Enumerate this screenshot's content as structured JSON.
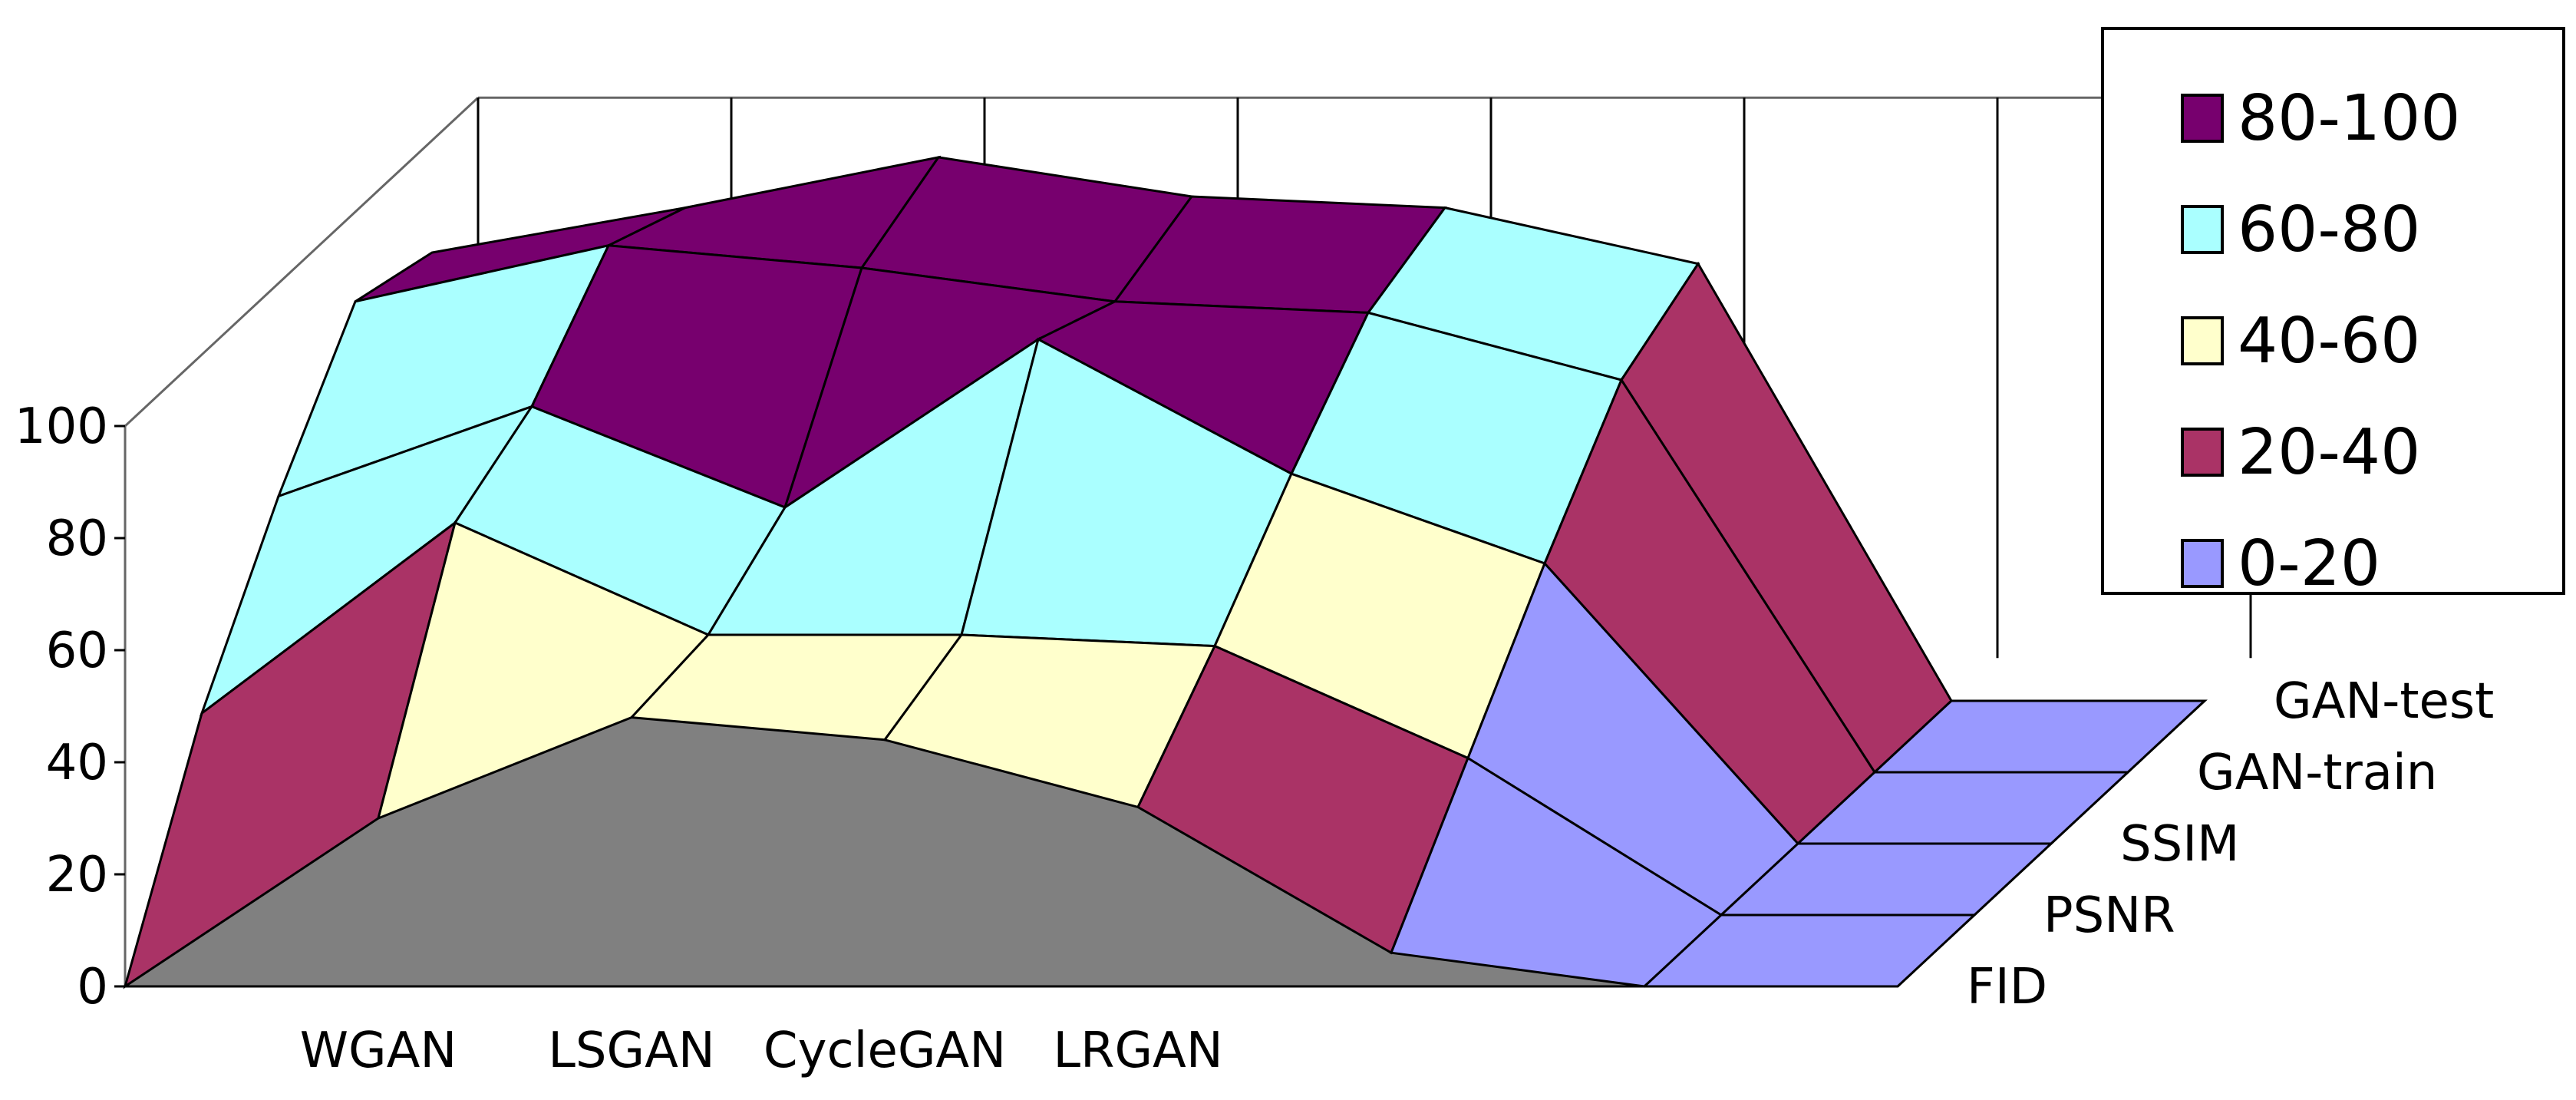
{
  "chart_data": {
    "type": "surface",
    "title": "",
    "xlabel": "",
    "ylabel": "",
    "zlim": [
      0,
      100
    ],
    "z_ticks": [
      "0",
      "20",
      "40",
      "60",
      "80",
      "100"
    ],
    "categories": [
      "",
      "WGAN",
      "LSGAN",
      "CycleGAN",
      "LRGAN",
      "",
      "",
      ""
    ],
    "series": [
      {
        "name": "FID",
        "values": [
          0,
          30,
          48,
          44,
          32,
          6,
          0,
          0
        ]
      },
      {
        "name": "PSNR",
        "values": [
          36,
          70,
          50,
          50,
          48,
          28,
          0,
          0
        ]
      },
      {
        "name": "SSIM",
        "values": [
          62,
          78,
          60,
          90,
          66,
          50,
          0,
          0
        ]
      },
      {
        "name": "GAN-train",
        "values": [
          84,
          94,
          90,
          84,
          82,
          70,
          0,
          0
        ]
      },
      {
        "name": "GAN-test",
        "values": [
          80,
          88,
          97,
          90,
          88,
          78,
          0,
          0
        ]
      }
    ],
    "legend": {
      "position": "top-right",
      "items": [
        {
          "label": "80-100",
          "color": "#77006e"
        },
        {
          "label": "60-80",
          "color": "#aaffff"
        },
        {
          "label": "40-60",
          "color": "#ffffcc"
        },
        {
          "label": "20-40",
          "color": "#aa3366"
        },
        {
          "label": "0-20",
          "color": "#9999ff"
        }
      ]
    },
    "floor_color": "#808080"
  }
}
